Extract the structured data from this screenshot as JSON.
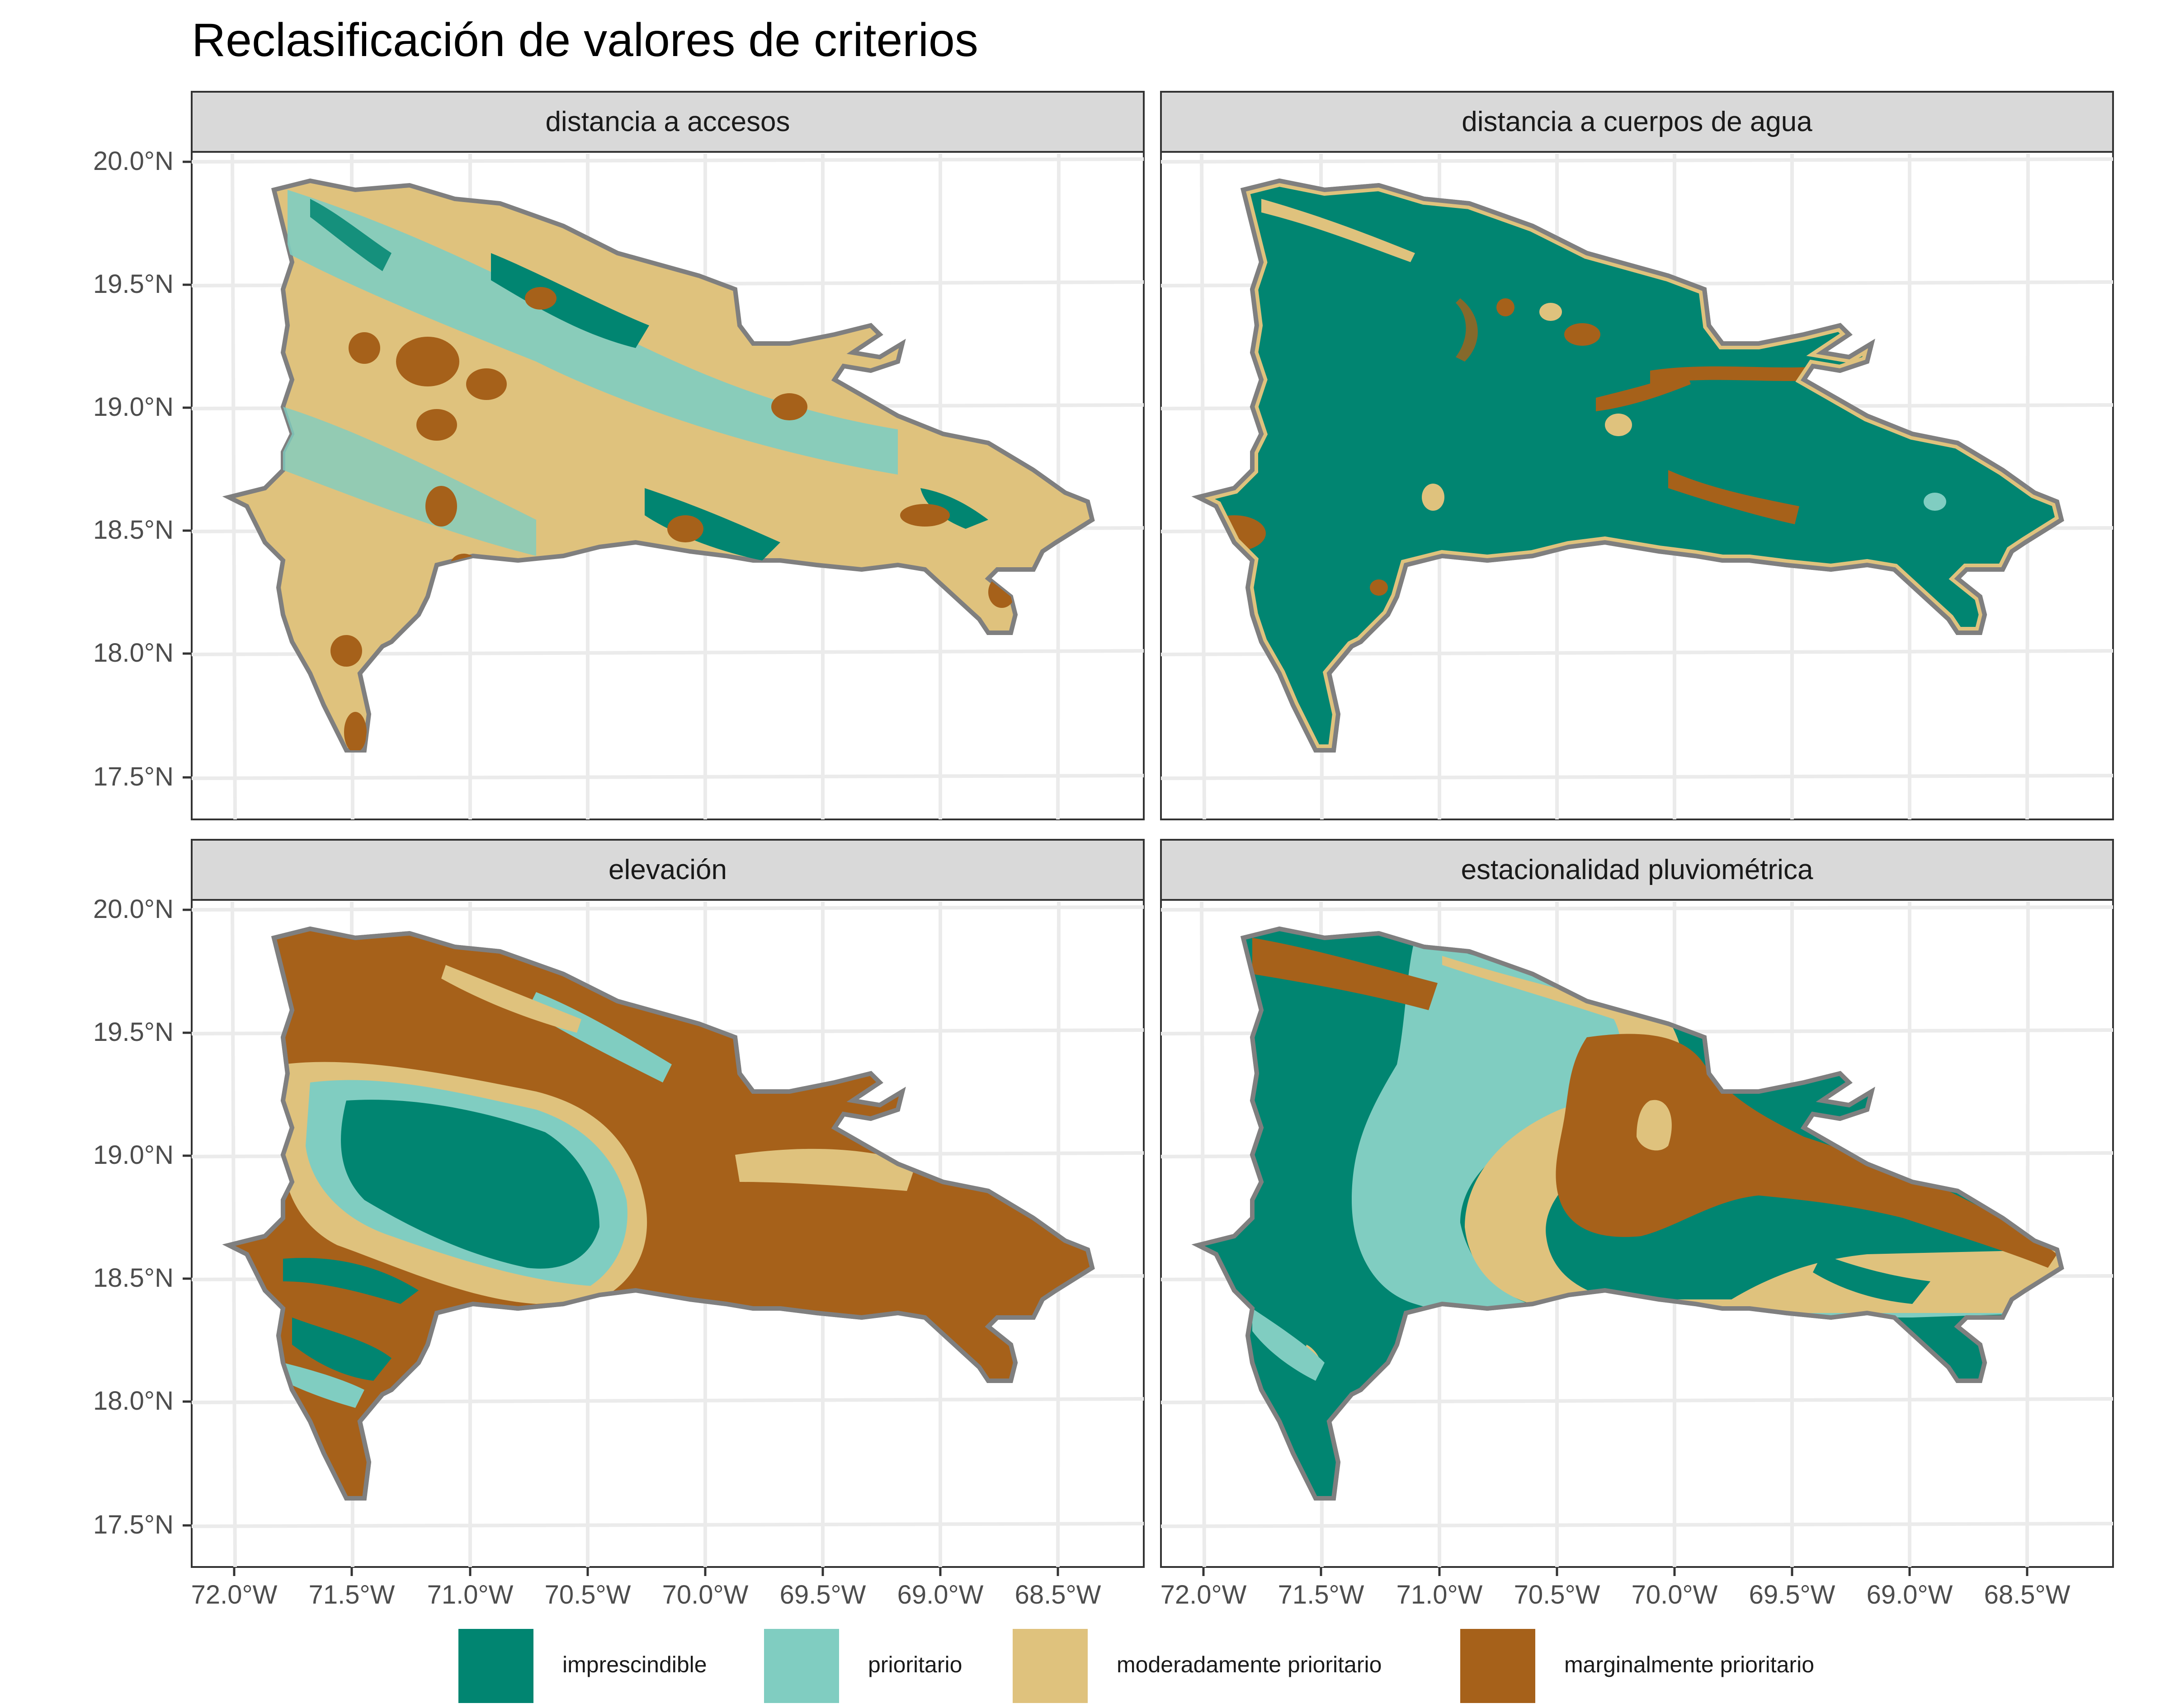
{
  "title": "Reclasificación de valores de criterios",
  "colors": {
    "imprescindible": "#018571",
    "prioritario": "#80cdc1",
    "moderadamente_prioritario": "#dfc27d",
    "marginalmente_prioritario": "#a6611a",
    "strip_bg": "#d9d9d9",
    "grid": "#ebebeb",
    "coast": "#7f7f7f"
  },
  "y_ticks": [
    "20.0°N",
    "19.5°N",
    "19.0°N",
    "18.5°N",
    "18.0°N",
    "17.5°N"
  ],
  "x_ticks": [
    "72.0°W",
    "71.5°W",
    "71.0°W",
    "70.5°W",
    "70.0°W",
    "69.5°W",
    "69.0°W",
    "68.5°W"
  ],
  "panels": [
    {
      "id": "access",
      "strip": "distancia a accesos"
    },
    {
      "id": "water",
      "strip": "distancia a cuerpos de agua"
    },
    {
      "id": "elev",
      "strip": "elevación"
    },
    {
      "id": "rain",
      "strip": "estacionalidad pluviométrica"
    }
  ],
  "legend": [
    {
      "key": "imprescindible",
      "label": "imprescindible",
      "color": "#018571"
    },
    {
      "key": "prioritario",
      "label": "prioritario",
      "color": "#80cdc1"
    },
    {
      "key": "moderadamente_prioritario",
      "label": "moderadamente prioritario",
      "color": "#dfc27d"
    },
    {
      "key": "marginalmente_prioritario",
      "label": "marginalmente prioritario",
      "color": "#a6611a"
    }
  ]
}
